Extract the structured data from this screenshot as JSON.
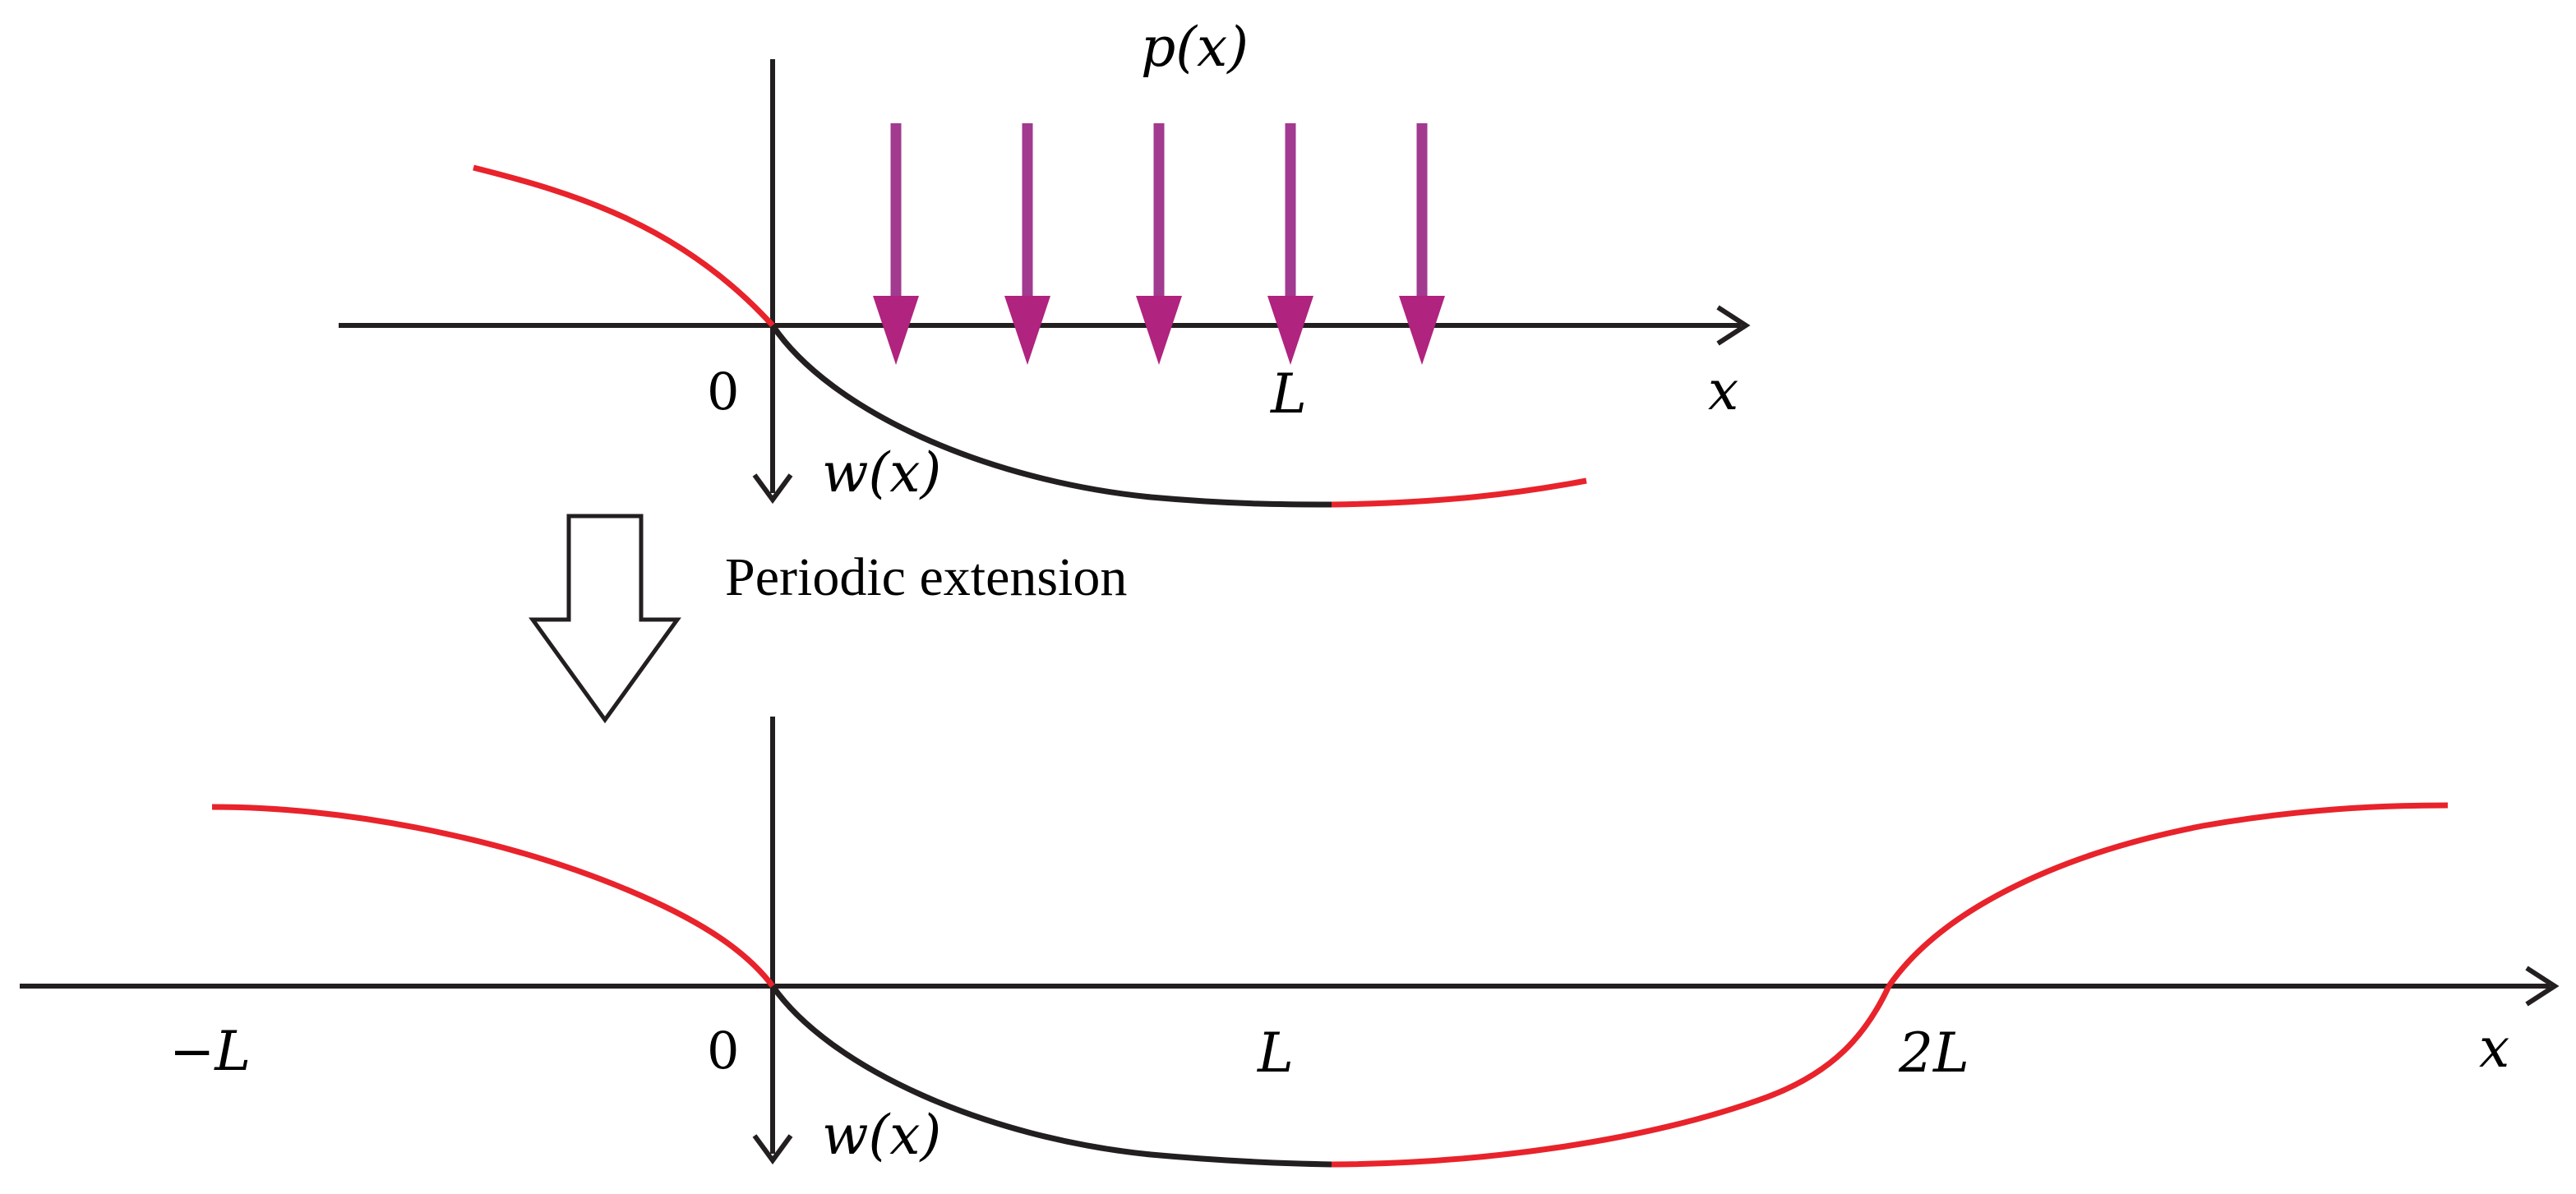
{
  "top": {
    "load_label": "p(x)",
    "origin_label": "0",
    "length_label": "L",
    "x_axis_label": "x",
    "deflection_label": "w(x)"
  },
  "transition": {
    "label": "Periodic extension"
  },
  "bottom": {
    "neg_length_label": "−L",
    "origin_label": "0",
    "length_label": "L",
    "double_length_label": "2L",
    "x_axis_label": "x",
    "deflection_label": "w(x)"
  },
  "colors": {
    "axis": "#231f20",
    "beam_original": "#231f20",
    "beam_extension": "#e8232b",
    "load_arrow": "#a23a8f",
    "load_arrow_head": "#b0237f"
  },
  "load_arrow_count": 5
}
